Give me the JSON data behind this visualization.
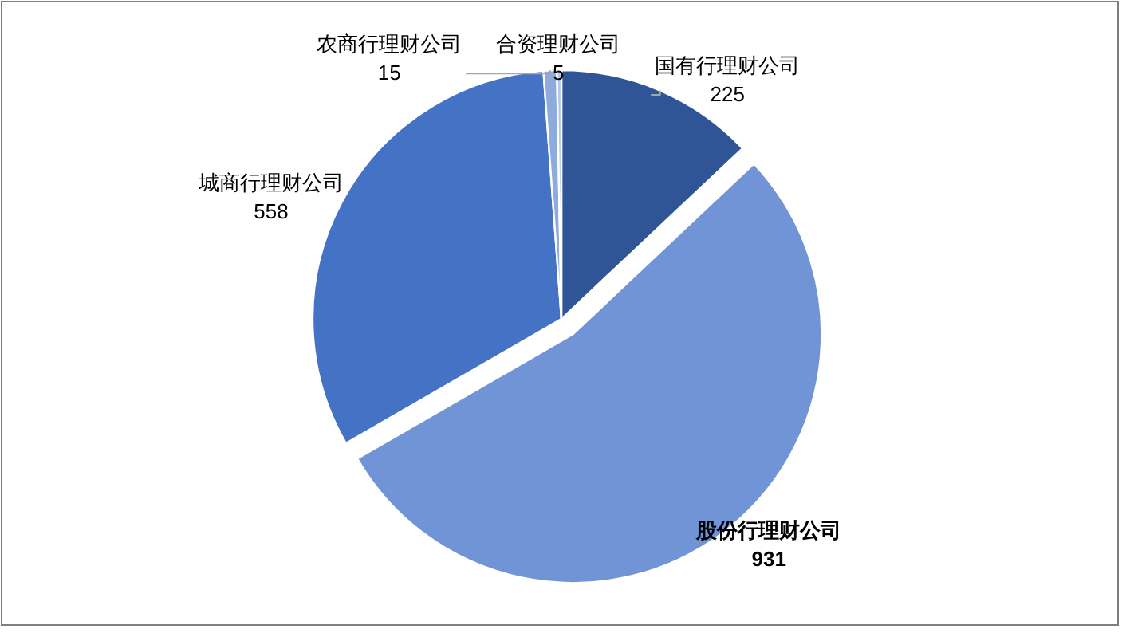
{
  "chart_data": {
    "type": "pie",
    "categories": [
      "国有行理财公司",
      "股份行理财公司",
      "城商行理财公司",
      "农商行理财公司",
      "合资理财公司"
    ],
    "values": [
      225,
      931,
      558,
      15,
      5
    ],
    "colors": [
      "#2f5597",
      "#7094d6",
      "#4472c4",
      "#8faadc",
      "#b4c7e7"
    ],
    "data_labels": true
  }
}
